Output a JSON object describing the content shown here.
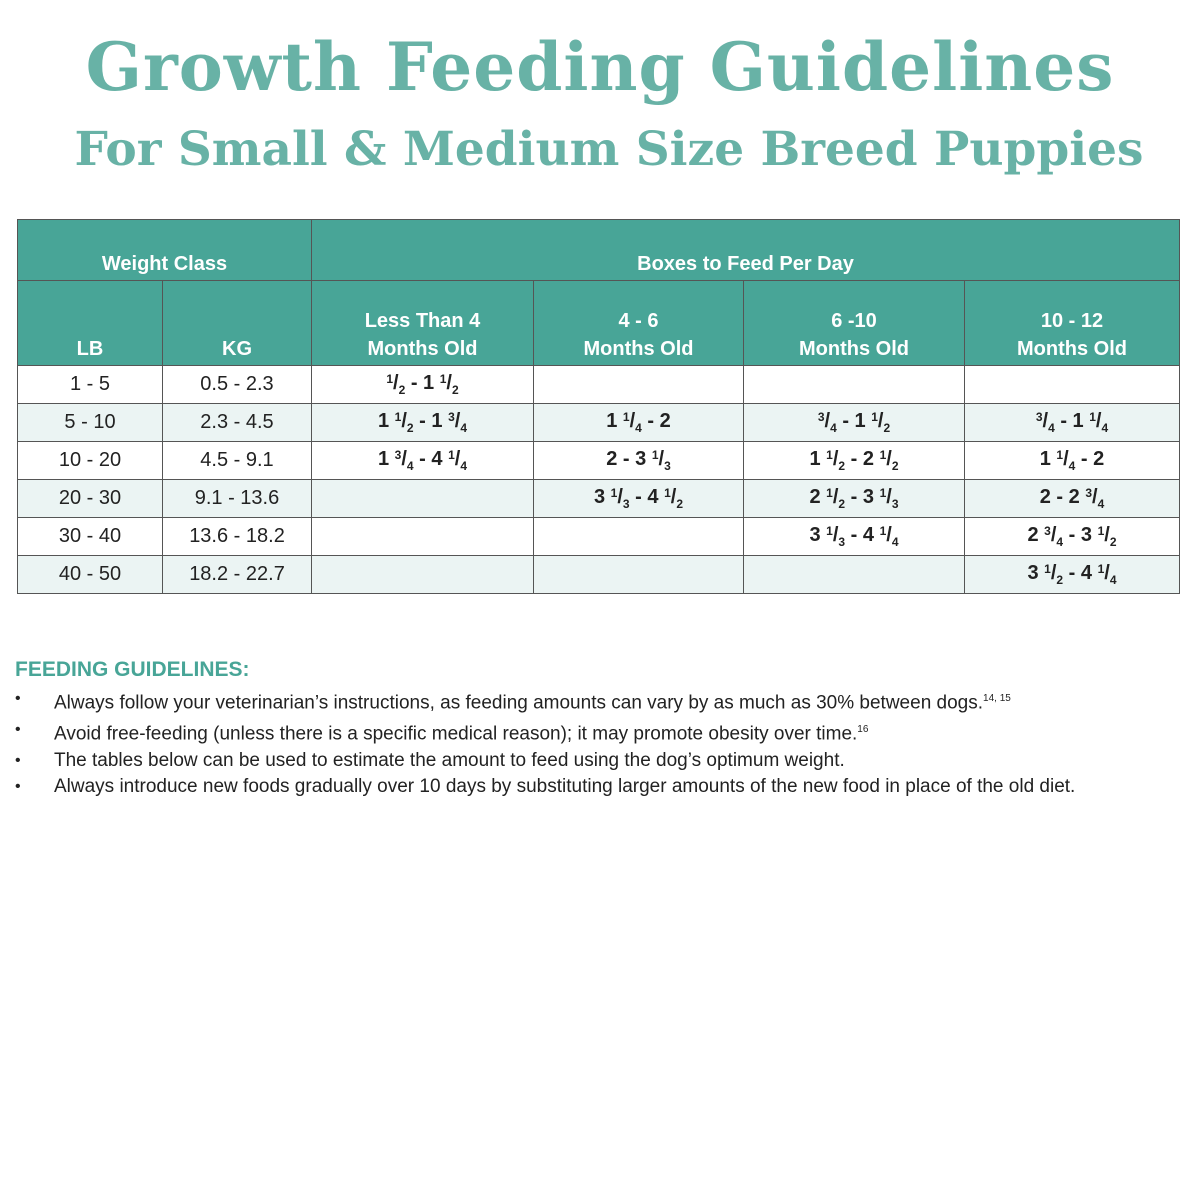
{
  "header": {
    "title": "Growth Feeding Guidelines",
    "subtitle": "For Small & Medium Size Breed Puppies"
  },
  "colors": {
    "accent": "#68b2a6",
    "table_header": "#48a597",
    "row_alt": "#ebf4f3"
  },
  "table": {
    "group_headers": [
      "Weight Class",
      "Boxes to Feed Per Day"
    ],
    "columns": [
      {
        "line1": "",
        "line2": "LB"
      },
      {
        "line1": "",
        "line2": "KG"
      },
      {
        "line1": "Less Than 4",
        "line2": "Months Old"
      },
      {
        "line1": "4 - 6",
        "line2": "Months Old"
      },
      {
        "line1": "6 -10",
        "line2": "Months Old"
      },
      {
        "line1": "10 - 12",
        "line2": "Months Old"
      }
    ],
    "rows": [
      {
        "lb": "1 - 5",
        "kg": "0.5 - 2.3",
        "lt4": "1/2 - 1 1/2",
        "m4_6": "",
        "m6_10": "",
        "m10_12": ""
      },
      {
        "lb": "5 - 10",
        "kg": "2.3 - 4.5",
        "lt4": "1 1/2 - 1 3/4",
        "m4_6": "1 1/4 - 2",
        "m6_10": "3/4 - 1 1/2",
        "m10_12": "3/4 - 1 1/4"
      },
      {
        "lb": "10 - 20",
        "kg": "4.5 - 9.1",
        "lt4": "1 3/4 - 4 1/4",
        "m4_6": "2 - 3 1/3",
        "m6_10": "1 1/2 - 2 1/2",
        "m10_12": "1 1/4 - 2"
      },
      {
        "lb": "20 - 30",
        "kg": "9.1 - 13.6",
        "lt4": "",
        "m4_6": "3 1/3 - 4 1/2",
        "m6_10": "2 1/2 - 3 1/3",
        "m10_12": "2 - 2 3/4"
      },
      {
        "lb": "30 - 40",
        "kg": "13.6 - 18.2",
        "lt4": "",
        "m4_6": "",
        "m6_10": "3 1/3 - 4 1/4",
        "m10_12": "2 3/4 - 3 1/2"
      },
      {
        "lb": "40 - 50",
        "kg": "18.2 - 22.7",
        "lt4": "",
        "m4_6": "",
        "m6_10": "",
        "m10_12": "3 1/2 - 4 1/4"
      }
    ]
  },
  "guidelines": {
    "heading": "FEEDING GUIDELINES:",
    "items": [
      {
        "text": "Always follow your veterinarian’s instructions, as feeding amounts can vary by as much as 30% between dogs.",
        "ref": "14, 15"
      },
      {
        "text": "Avoid free-feeding (unless there is a specific medical reason); it may promote obesity over time.",
        "ref": "16"
      },
      {
        "text": "The tables below can be used to estimate the amount to feed using the dog’s optimum weight.",
        "ref": ""
      },
      {
        "text": "Always introduce new foods gradually over 10 days by substituting larger amounts of the new food in place of the old diet.",
        "ref": ""
      }
    ]
  }
}
